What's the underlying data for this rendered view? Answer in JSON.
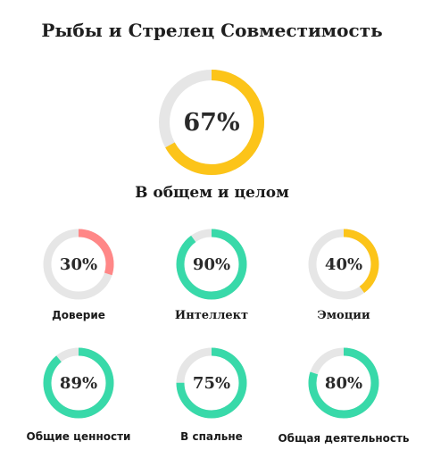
{
  "title": "Рыбы и Стрелец Совместимость",
  "colors": {
    "track": "#e6e6e6",
    "yellow": "#fcc419",
    "pink": "#ff8787",
    "green": "#38d9a9"
  },
  "overall": {
    "value": 67,
    "label": "67%",
    "caption": "В общем и целом",
    "color": "#fcc419"
  },
  "metrics": [
    {
      "value": 30,
      "label": "30%",
      "caption": "Доверие",
      "color": "#ff8787"
    },
    {
      "value": 90,
      "label": "90%",
      "caption": "Интеллект",
      "color": "#38d9a9"
    },
    {
      "value": 40,
      "label": "40%",
      "caption": "Эмоции",
      "color": "#fcc419"
    },
    {
      "value": 89,
      "label": "89%",
      "caption": "Общие ценности",
      "color": "#38d9a9"
    },
    {
      "value": 75,
      "label": "75%",
      "caption": "В спальне",
      "color": "#38d9a9"
    },
    {
      "value": 80,
      "label": "80%",
      "caption": "Общая деятельность",
      "color": "#38d9a9"
    }
  ]
}
